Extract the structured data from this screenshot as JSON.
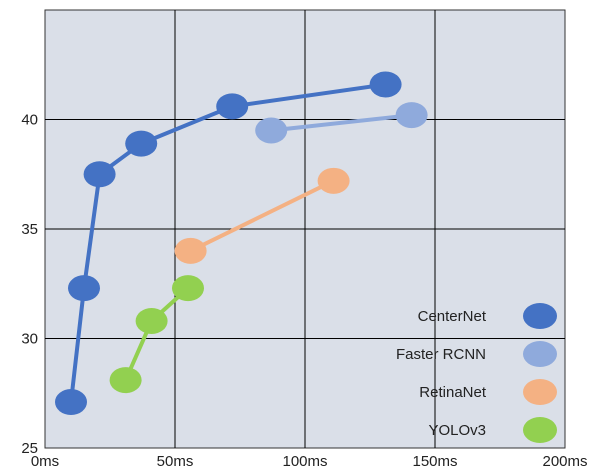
{
  "chart_data": {
    "type": "scatter",
    "xlim": [
      0,
      200
    ],
    "ylim": [
      25,
      45
    ],
    "x_ticks": [
      0,
      50,
      100,
      150,
      200
    ],
    "x_tick_labels": [
      "0ms",
      "50ms",
      "100ms",
      "150ms",
      "200ms"
    ],
    "y_ticks": [
      25,
      30,
      35,
      40
    ],
    "y_tick_labels": [
      "25",
      "30",
      "35",
      "40"
    ],
    "grid": true,
    "legend_position": "bottom-right",
    "series": [
      {
        "name": "CenterNet",
        "color": "#4472c4",
        "points": [
          [
            10,
            27.1
          ],
          [
            15,
            32.3
          ],
          [
            21,
            37.5
          ],
          [
            37,
            38.9
          ],
          [
            72,
            40.6
          ],
          [
            131,
            41.6
          ]
        ]
      },
      {
        "name": "Faster RCNN",
        "color": "#8faadc",
        "points": [
          [
            87,
            39.5
          ],
          [
            141,
            40.2
          ]
        ]
      },
      {
        "name": "RetinaNet",
        "color": "#f4b183",
        "points": [
          [
            56,
            34.0
          ],
          [
            111,
            37.2
          ]
        ]
      },
      {
        "name": "YOLOv3",
        "color": "#92d050",
        "points": [
          [
            31,
            28.1
          ],
          [
            41,
            30.8
          ],
          [
            55,
            32.3
          ]
        ]
      }
    ]
  }
}
